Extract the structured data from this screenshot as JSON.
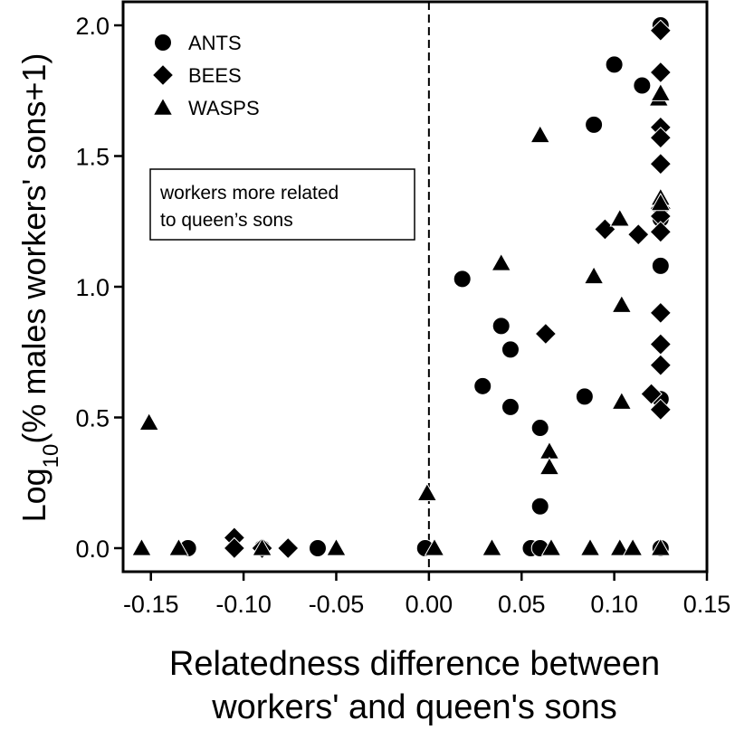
{
  "chart_data": {
    "type": "scatter",
    "xlabel_lines": [
      "Relatedness difference between",
      "workers' and queen's sons"
    ],
    "ylabel": {
      "prefix": "Log",
      "subscript": "10",
      "suffix": "(% males workers' sons+1)"
    },
    "xlim": [
      -0.165,
      0.15
    ],
    "ylim": [
      -0.09,
      2.09
    ],
    "x_ticks": [
      -0.15,
      -0.1,
      -0.05,
      0.0,
      0.05,
      0.1,
      0.15
    ],
    "x_tick_labels": [
      "-0.15",
      "-0.10",
      "-0.05",
      "0.00",
      "0.05",
      "0.10",
      "0.15"
    ],
    "y_ticks": [
      0.0,
      0.5,
      1.0,
      1.5,
      2.0
    ],
    "y_tick_labels": [
      "0.0",
      "0.5",
      "1.0",
      "1.5",
      "2.0"
    ],
    "reference_line_x": 0.0,
    "legend_position": "top-left",
    "annotation": [
      "workers more related",
      "to queen’s sons"
    ],
    "series": [
      {
        "name": "ANTS",
        "marker": "circle",
        "points": [
          [
            -0.13,
            0.0
          ],
          [
            -0.09,
            0.0
          ],
          [
            -0.06,
            0.0
          ],
          [
            -0.002,
            0.0
          ],
          [
            0.018,
            1.03
          ],
          [
            0.029,
            0.62
          ],
          [
            0.039,
            0.85
          ],
          [
            0.044,
            0.76
          ],
          [
            0.044,
            0.54
          ],
          [
            0.06,
            0.46
          ],
          [
            0.06,
            0.16
          ],
          [
            0.055,
            0.0
          ],
          [
            0.06,
            0.0
          ],
          [
            0.084,
            0.58
          ],
          [
            0.089,
            1.62
          ],
          [
            0.1,
            1.85
          ],
          [
            0.115,
            1.77
          ],
          [
            0.125,
            1.08
          ],
          [
            0.125,
            1.26
          ],
          [
            0.125,
            0.57
          ],
          [
            0.125,
            2.0
          ],
          [
            0.125,
            0.0
          ]
        ]
      },
      {
        "name": "BEES",
        "marker": "diamond",
        "points": [
          [
            -0.105,
            0.04
          ],
          [
            -0.105,
            0.0
          ],
          [
            -0.09,
            0.0
          ],
          [
            -0.076,
            0.0
          ],
          [
            0.063,
            0.82
          ],
          [
            0.095,
            1.22
          ],
          [
            0.113,
            1.2
          ],
          [
            0.12,
            0.59
          ],
          [
            0.125,
            1.98
          ],
          [
            0.125,
            1.82
          ],
          [
            0.125,
            1.61
          ],
          [
            0.125,
            1.57
          ],
          [
            0.125,
            1.47
          ],
          [
            0.125,
            1.3
          ],
          [
            0.125,
            1.27
          ],
          [
            0.125,
            1.21
          ],
          [
            0.125,
            0.9
          ],
          [
            0.125,
            0.78
          ],
          [
            0.125,
            0.7
          ],
          [
            0.125,
            0.53
          ]
        ]
      },
      {
        "name": "WASPS",
        "marker": "triangle",
        "points": [
          [
            -0.155,
            0.0
          ],
          [
            -0.151,
            0.48
          ],
          [
            -0.135,
            0.0
          ],
          [
            -0.09,
            0.0
          ],
          [
            -0.05,
            0.0
          ],
          [
            -0.001,
            0.21
          ],
          [
            0.003,
            0.0
          ],
          [
            0.034,
            0.0
          ],
          [
            0.039,
            1.09
          ],
          [
            0.06,
            1.58
          ],
          [
            0.065,
            0.37
          ],
          [
            0.065,
            0.31
          ],
          [
            0.066,
            0.0
          ],
          [
            0.087,
            0.0
          ],
          [
            0.089,
            1.04
          ],
          [
            0.103,
            1.26
          ],
          [
            0.104,
            0.93
          ],
          [
            0.104,
            0.56
          ],
          [
            0.103,
            0.0
          ],
          [
            0.11,
            0.0
          ],
          [
            0.124,
            1.72
          ],
          [
            0.125,
            1.74
          ],
          [
            0.125,
            1.34
          ],
          [
            0.125,
            1.32
          ],
          [
            0.125,
            0.0
          ]
        ]
      }
    ]
  }
}
